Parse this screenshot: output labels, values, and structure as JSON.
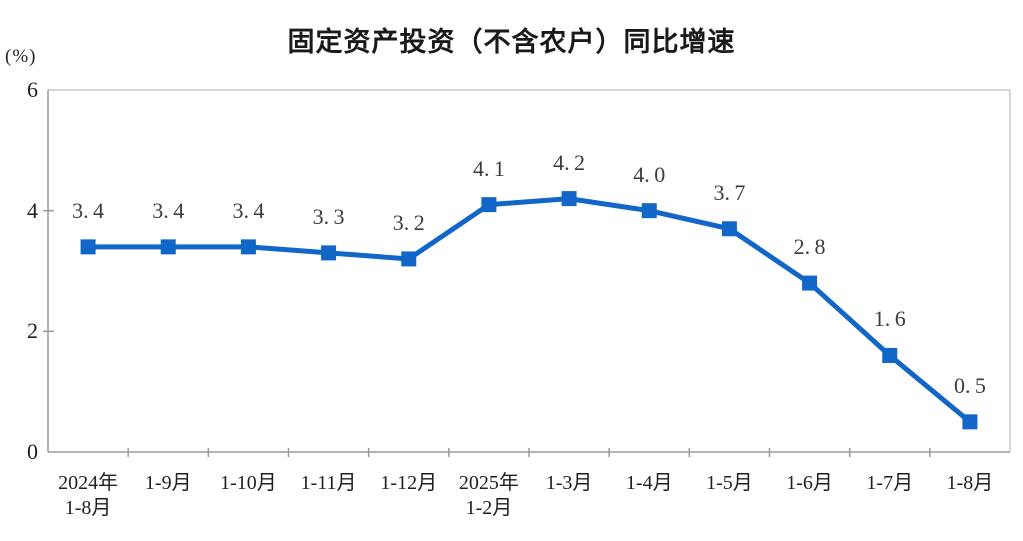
{
  "chart_data": {
    "type": "line",
    "title": "固定资产投资（不含农户）同比增速",
    "ylabel": "(%)",
    "xlabel": "",
    "categories": [
      "2024年\n1-8月",
      "1-9月",
      "1-10月",
      "1-11月",
      "1-12月",
      "2025年\n1-2月",
      "1-3月",
      "1-4月",
      "1-5月",
      "1-6月",
      "1-7月",
      "1-8月"
    ],
    "values": [
      3.4,
      3.4,
      3.4,
      3.3,
      3.2,
      4.1,
      4.2,
      4.0,
      3.7,
      2.8,
      1.6,
      0.5
    ],
    "data_labels": [
      "3.4",
      "3.4",
      "3.4",
      "3.3",
      "3.2",
      "4.1",
      "4.2",
      "4.0",
      "3.7",
      "2.8",
      "1.6",
      "0.5"
    ],
    "ylim": [
      0,
      6
    ],
    "y_ticks": [
      "0",
      "2",
      "4",
      "6"
    ],
    "grid": false,
    "legend_position": "none",
    "series_name": "固定资产投资（不含农户）同比增速",
    "line_color": "#1166c8",
    "marker": "square",
    "axis_color": "#9a9a9a",
    "border_color": "#c9c9c9"
  }
}
